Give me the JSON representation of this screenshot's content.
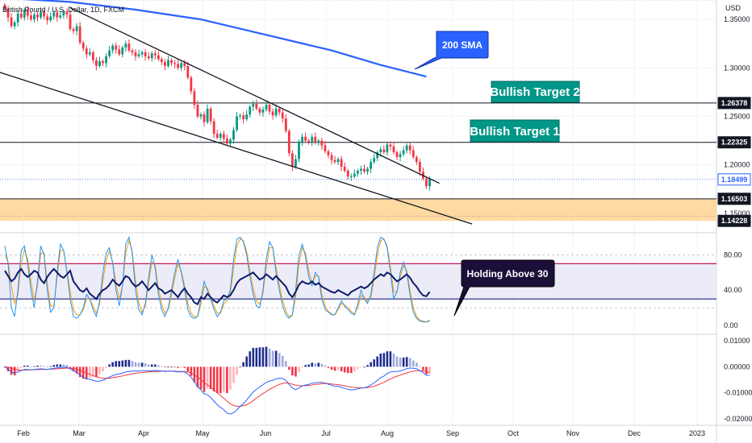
{
  "chart_data": {
    "type": "candlestick",
    "title": "British Pound / U.S. Dollar, 1D, FXCM",
    "currency": "USD",
    "x_labels": [
      "Feb",
      "Mar",
      "Apr",
      "May",
      "Jun",
      "Jul",
      "Aug",
      "Sep",
      "Oct",
      "Nov",
      "Dec",
      "2023"
    ],
    "price_axis": {
      "ticks": [
        "1.35000",
        "1.30000",
        "1.25000",
        "1.20000",
        "1.15000"
      ],
      "tick_values": [
        1.35,
        1.3,
        1.25,
        1.2,
        1.15
      ],
      "ylim": [
        1.13,
        1.37
      ]
    },
    "price_labels": [
      {
        "text": "1.26378",
        "value": 1.26378,
        "style": "dark"
      },
      {
        "text": "1.22325",
        "value": 1.22325,
        "style": "dark"
      },
      {
        "text": "1.18499",
        "value": 1.18499,
        "style": "blue"
      },
      {
        "text": "1.16503",
        "value": 1.16503,
        "style": "dark"
      },
      {
        "text": "1.14228",
        "value": 1.14228,
        "style": "dark"
      }
    ],
    "support_zone": [
      1.14228,
      1.16503
    ],
    "horizontal_levels": [
      1.26378,
      1.22325,
      1.16503
    ],
    "close_series": [
      1.361,
      1.352,
      1.343,
      1.347,
      1.356,
      1.352,
      1.36,
      1.354,
      1.35,
      1.355,
      1.352,
      1.358,
      1.353,
      1.349,
      1.353,
      1.357,
      1.352,
      1.354,
      1.358,
      1.355,
      1.34,
      1.338,
      1.343,
      1.326,
      1.32,
      1.314,
      1.316,
      1.308,
      1.302,
      1.307,
      1.305,
      1.312,
      1.318,
      1.323,
      1.319,
      1.314,
      1.321,
      1.325,
      1.318,
      1.316,
      1.312,
      1.314,
      1.316,
      1.312,
      1.31,
      1.315,
      1.313,
      1.309,
      1.306,
      1.302,
      1.308,
      1.305,
      1.304,
      1.3,
      1.305,
      1.302,
      1.29,
      1.276,
      1.262,
      1.25,
      1.252,
      1.244,
      1.258,
      1.245,
      1.232,
      1.228,
      1.232,
      1.227,
      1.222,
      1.226,
      1.236,
      1.25,
      1.251,
      1.247,
      1.252,
      1.26,
      1.263,
      1.258,
      1.254,
      1.257,
      1.262,
      1.255,
      1.251,
      1.258,
      1.254,
      1.248,
      1.235,
      1.212,
      1.198,
      1.206,
      1.224,
      1.229,
      1.225,
      1.224,
      1.229,
      1.223,
      1.225,
      1.22,
      1.214,
      1.21,
      1.205,
      1.203,
      1.206,
      1.198,
      1.194,
      1.188,
      1.188,
      1.191,
      1.194,
      1.196,
      1.193,
      1.196,
      1.203,
      1.207,
      1.213,
      1.216,
      1.213,
      1.221,
      1.219,
      1.213,
      1.208,
      1.211,
      1.215,
      1.22,
      1.215,
      1.208,
      1.203,
      1.193,
      1.186,
      1.178,
      1.185
    ],
    "sma200": [
      {
        "x": 0,
        "v": 1.372
      },
      {
        "x": 20,
        "v": 1.368
      },
      {
        "x": 40,
        "v": 1.36
      },
      {
        "x": 60,
        "v": 1.35
      },
      {
        "x": 80,
        "v": 1.334
      },
      {
        "x": 100,
        "v": 1.318
      },
      {
        "x": 115,
        "v": 1.303
      },
      {
        "x": 129,
        "v": 1.291
      }
    ],
    "trendlines": [
      {
        "from": {
          "x": 20,
          "v": 1.362
        },
        "to": {
          "x": 133,
          "v": 1.181
        }
      },
      {
        "from": {
          "x": -4,
          "v": 1.298
        },
        "to": {
          "x": 143,
          "v": 1.139
        }
      }
    ],
    "stoch_rsi": {
      "axis_ticks": [
        "80.00",
        "40.00",
        "0.00"
      ],
      "tick_values": [
        80,
        40,
        0
      ],
      "ylim": [
        -10,
        105
      ],
      "band": [
        30,
        70
      ],
      "rsi": [
        62,
        56,
        50,
        53,
        60,
        64,
        58,
        55,
        58,
        62,
        60,
        52,
        48,
        55,
        60,
        64,
        60,
        56,
        54,
        58,
        62,
        50,
        45,
        40,
        38,
        42,
        36,
        33,
        30,
        36,
        40,
        42,
        46,
        52,
        48,
        45,
        50,
        56,
        54,
        48,
        44,
        46,
        50,
        45,
        40,
        44,
        48,
        42,
        40,
        36,
        38,
        40,
        36,
        32,
        38,
        42,
        36,
        32,
        26,
        24,
        32,
        30,
        36,
        32,
        28,
        26,
        30,
        34,
        32,
        34,
        40,
        48,
        52,
        54,
        56,
        58,
        60,
        56,
        52,
        54,
        58,
        55,
        52,
        56,
        52,
        48,
        44,
        36,
        32,
        38,
        46,
        50,
        48,
        47,
        50,
        46,
        48,
        44,
        42,
        40,
        38,
        37,
        40,
        38,
        36,
        34,
        38,
        40,
        42,
        44,
        42,
        44,
        48,
        52,
        55,
        58,
        56,
        60,
        58,
        54,
        50,
        52,
        55,
        58,
        54,
        48,
        44,
        38,
        34,
        33,
        38
      ],
      "stoch_k": [
        90,
        70,
        20,
        10,
        40,
        85,
        90,
        70,
        40,
        20,
        50,
        90,
        80,
        40,
        15,
        20,
        60,
        92,
        85,
        60,
        30,
        10,
        8,
        12,
        20,
        35,
        30,
        18,
        10,
        28,
        60,
        82,
        88,
        70,
        40,
        22,
        45,
        92,
        100,
        82,
        40,
        18,
        12,
        25,
        55,
        80,
        65,
        35,
        18,
        10,
        20,
        40,
        60,
        75,
        60,
        40,
        18,
        10,
        8,
        10,
        30,
        50,
        40,
        30,
        18,
        10,
        15,
        28,
        30,
        40,
        75,
        98,
        100,
        95,
        80,
        55,
        35,
        22,
        20,
        40,
        75,
        95,
        88,
        60,
        40,
        22,
        12,
        8,
        12,
        40,
        80,
        92,
        78,
        55,
        45,
        60,
        55,
        30,
        18,
        15,
        12,
        12,
        20,
        28,
        22,
        18,
        14,
        12,
        24,
        40,
        30,
        25,
        35,
        60,
        88,
        100,
        98,
        88,
        60,
        30,
        38,
        60,
        72,
        60,
        34,
        15,
        8,
        5,
        4,
        4,
        6
      ],
      "stoch_d": [
        80,
        72,
        45,
        25,
        35,
        70,
        86,
        75,
        50,
        28,
        45,
        82,
        82,
        48,
        22,
        22,
        55,
        85,
        85,
        62,
        38,
        18,
        12,
        12,
        18,
        30,
        30,
        22,
        14,
        24,
        50,
        74,
        84,
        72,
        48,
        30,
        44,
        82,
        96,
        84,
        50,
        26,
        15,
        22,
        48,
        72,
        68,
        42,
        24,
        14,
        18,
        34,
        54,
        70,
        62,
        45,
        25,
        14,
        10,
        10,
        24,
        44,
        42,
        32,
        22,
        14,
        14,
        24,
        28,
        36,
        64,
        90,
        98,
        96,
        84,
        62,
        42,
        28,
        24,
        36,
        66,
        88,
        88,
        66,
        46,
        28,
        16,
        10,
        12,
        32,
        70,
        88,
        82,
        62,
        48,
        56,
        56,
        36,
        22,
        16,
        13,
        12,
        18,
        25,
        23,
        20,
        16,
        13,
        20,
        34,
        32,
        27,
        32,
        52,
        80,
        96,
        98,
        90,
        66,
        38,
        38,
        55,
        68,
        62,
        40,
        20,
        10,
        6,
        5,
        4,
        5
      ]
    },
    "macd": {
      "axis_ticks": [
        "0.01000",
        "0.00000",
        "-0.01000",
        "-0.02000"
      ],
      "tick_values": [
        0.01,
        0.0,
        -0.01,
        -0.02
      ],
      "ylim": [
        -0.0225,
        0.0125
      ],
      "macd": [
        0.0,
        -0.001,
        -0.002,
        -0.0025,
        -0.002,
        -0.0015,
        -0.001,
        -0.001,
        -0.0012,
        -0.001,
        -0.0009,
        -0.0008,
        -0.0009,
        -0.001,
        -0.0008,
        -0.0006,
        -0.0004,
        -0.0003,
        -0.0002,
        -0.0002,
        -0.0008,
        -0.0015,
        -0.0022,
        -0.0032,
        -0.004,
        -0.0046,
        -0.0048,
        -0.0052,
        -0.0056,
        -0.0055,
        -0.0052,
        -0.0046,
        -0.004,
        -0.0034,
        -0.003,
        -0.0028,
        -0.0024,
        -0.002,
        -0.0018,
        -0.0017,
        -0.0017,
        -0.0016,
        -0.0015,
        -0.0015,
        -0.0016,
        -0.0015,
        -0.0014,
        -0.0015,
        -0.0016,
        -0.0018,
        -0.0017,
        -0.0017,
        -0.0018,
        -0.002,
        -0.0019,
        -0.002,
        -0.0028,
        -0.004,
        -0.0058,
        -0.0076,
        -0.0089,
        -0.0104,
        -0.0108,
        -0.0118,
        -0.0132,
        -0.0146,
        -0.0156,
        -0.0165,
        -0.0178,
        -0.0182,
        -0.0177,
        -0.0166,
        -0.0152,
        -0.0142,
        -0.0128,
        -0.0112,
        -0.0097,
        -0.0087,
        -0.0078,
        -0.0069,
        -0.006,
        -0.0055,
        -0.0052,
        -0.0046,
        -0.0044,
        -0.0045,
        -0.0052,
        -0.0068,
        -0.0082,
        -0.0088,
        -0.0082,
        -0.0074,
        -0.007,
        -0.0068,
        -0.0063,
        -0.0062,
        -0.006,
        -0.006,
        -0.0063,
        -0.0067,
        -0.0071,
        -0.0075,
        -0.0075,
        -0.0079,
        -0.0083,
        -0.0087,
        -0.0089,
        -0.0088,
        -0.0085,
        -0.0082,
        -0.0081,
        -0.0077,
        -0.007,
        -0.0062,
        -0.0052,
        -0.0042,
        -0.0036,
        -0.0026,
        -0.002,
        -0.0018,
        -0.0018,
        -0.0016,
        -0.0012,
        -0.0007,
        -0.0005,
        -0.0006,
        -0.0008,
        -0.0014,
        -0.0022,
        -0.0032,
        -0.0034
      ],
      "signal": [
        0.0,
        -0.0002,
        -0.0006,
        -0.001,
        -0.0012,
        -0.0013,
        -0.0012,
        -0.0012,
        -0.0012,
        -0.0011,
        -0.0011,
        -0.001,
        -0.001,
        -0.001,
        -0.0009,
        -0.0009,
        -0.0008,
        -0.0007,
        -0.0006,
        -0.0005,
        -0.0006,
        -0.0007,
        -0.001,
        -0.0014,
        -0.0019,
        -0.0024,
        -0.0029,
        -0.0034,
        -0.0038,
        -0.0042,
        -0.0044,
        -0.0044,
        -0.0044,
        -0.0042,
        -0.004,
        -0.0038,
        -0.0035,
        -0.0032,
        -0.003,
        -0.0027,
        -0.0025,
        -0.0023,
        -0.0022,
        -0.0021,
        -0.002,
        -0.0019,
        -0.0018,
        -0.0018,
        -0.0017,
        -0.0017,
        -0.0017,
        -0.0017,
        -0.0017,
        -0.0018,
        -0.0018,
        -0.0018,
        -0.002,
        -0.0024,
        -0.0031,
        -0.004,
        -0.005,
        -0.006,
        -0.007,
        -0.0079,
        -0.0089,
        -0.01,
        -0.011,
        -0.0121,
        -0.0132,
        -0.0142,
        -0.0149,
        -0.0152,
        -0.0152,
        -0.015,
        -0.0146,
        -0.0139,
        -0.013,
        -0.012,
        -0.0112,
        -0.0103,
        -0.0095,
        -0.0087,
        -0.008,
        -0.0074,
        -0.0068,
        -0.0064,
        -0.0062,
        -0.0063,
        -0.0067,
        -0.0071,
        -0.0073,
        -0.0073,
        -0.0073,
        -0.0072,
        -0.007,
        -0.0068,
        -0.0067,
        -0.0065,
        -0.0065,
        -0.0065,
        -0.0066,
        -0.0068,
        -0.0069,
        -0.0071,
        -0.0073,
        -0.0076,
        -0.0078,
        -0.008,
        -0.0081,
        -0.0081,
        -0.0081,
        -0.008,
        -0.0078,
        -0.0075,
        -0.007,
        -0.0065,
        -0.006,
        -0.0053,
        -0.0047,
        -0.0041,
        -0.0036,
        -0.0032,
        -0.0028,
        -0.0024,
        -0.002,
        -0.0017,
        -0.0015,
        -0.0015,
        -0.0016,
        -0.0019,
        -0.0022
      ]
    },
    "annotations": {
      "sma_callout": "200 SMA",
      "target2": "Bullish Target 2",
      "target1": "Bullish Target 1",
      "rsi_callout": "Holding Above 30"
    },
    "colors": {
      "up": "#089981",
      "down": "#f23645",
      "sma": "#2962ff",
      "callout_blue": "#2962ff",
      "target_teal": "#009688",
      "callout_dark": "#1b0f3a",
      "zone": "#ffd699",
      "rsi_line": "#0d1b6b",
      "rsi_band": "#ececf8",
      "stoch_k": "#2196f3",
      "stoch_d": "#ff9800",
      "macd_line": "#2962ff",
      "signal_line": "#f23645"
    }
  }
}
